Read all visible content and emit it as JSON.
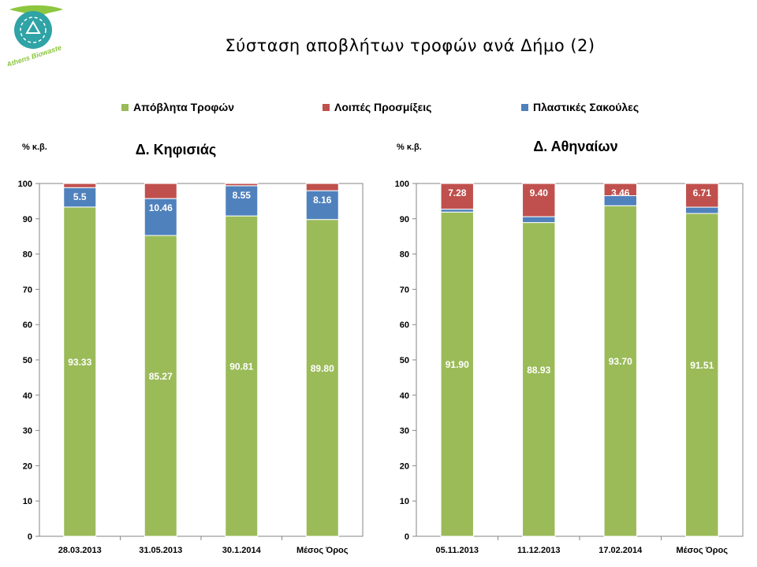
{
  "page": {
    "title": "Σύσταση αποβλήτων τροφών ανά Δήμο (2)",
    "logo_text": "Athens Biowaste"
  },
  "colors": {
    "food": "#9bbb59",
    "impurities": "#c0504d",
    "bags": "#4f81bd",
    "logo_circle": "#2fa3a6",
    "logo_leaf": "#8dc63f"
  },
  "legend": [
    {
      "name": "Απόβλητα Τροφών",
      "color": "#9bbb59"
    },
    {
      "name": "Λοιπές Προσμίξεις",
      "color": "#c0504d"
    },
    {
      "name": "Πλαστικές Σακούλες",
      "color": "#4f81bd"
    }
  ],
  "chart_data": [
    {
      "type": "bar",
      "stacked": true,
      "title": "Δ. Κηφισιάς",
      "ylabel": "% κ.β.",
      "ylim": [
        0,
        100
      ],
      "yticks": [
        0,
        10,
        20,
        30,
        40,
        50,
        60,
        70,
        80,
        90,
        100
      ],
      "categories": [
        "28.03.2013",
        "31.05.2013",
        "30.1.2014",
        "Μέσος Όρος"
      ],
      "series": [
        {
          "name": "Απόβλητα Τροφών",
          "key": "food",
          "values": [
            93.33,
            85.27,
            90.81,
            89.8
          ],
          "labels": [
            "93.33",
            "85.27",
            "90.81",
            "89.80"
          ]
        },
        {
          "name": "Πλαστικές Σακούλες",
          "key": "bags",
          "values": [
            5.5,
            10.46,
            8.55,
            8.16
          ],
          "labels": [
            "5.5",
            "10.46",
            "8.55",
            "8.16"
          ]
        },
        {
          "name": "Λοιπές Προσμίξεις",
          "key": "impurities",
          "values": [
            1.17,
            4.27,
            0.64,
            2.04
          ],
          "labels": [
            "",
            "",
            "",
            ""
          ]
        }
      ]
    },
    {
      "type": "bar",
      "stacked": true,
      "title": "Δ. Αθηναίων",
      "ylabel": "% κ.β.",
      "ylim": [
        0,
        100
      ],
      "yticks": [
        0,
        10,
        20,
        30,
        40,
        50,
        60,
        70,
        80,
        90,
        100
      ],
      "categories": [
        "05.11.2013",
        "11.12.2013",
        "17.02.2014",
        "Μέσος Όρος"
      ],
      "series": [
        {
          "name": "Απόβλητα Τροφών",
          "key": "food",
          "values": [
            91.9,
            88.93,
            93.7,
            91.51
          ],
          "labels": [
            "91.90",
            "88.93",
            "93.70",
            "91.51"
          ]
        },
        {
          "name": "Λοιπές Προσμίξεις",
          "key": "impurities",
          "values": [
            7.28,
            9.4,
            3.46,
            6.71
          ],
          "labels": [
            "7.28",
            "9.40",
            "3.46",
            "6.71"
          ]
        },
        {
          "name": "Πλαστικές Σακούλες",
          "key": "bags",
          "values": [
            0.82,
            1.67,
            2.84,
            1.78
          ],
          "labels": [
            "",
            "",
            "",
            ""
          ]
        }
      ]
    }
  ]
}
